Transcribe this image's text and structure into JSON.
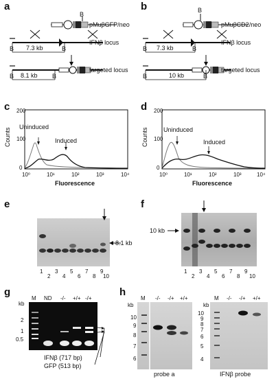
{
  "figure": {
    "panels": {
      "a": {
        "letter": "a",
        "plasmid": "pMuβGFP/neo",
        "locus": "IFNβ locus",
        "targeted": "targeted locus",
        "size_wt": "7.3 kb",
        "size_targeted": "8.1 kb",
        "site": "B"
      },
      "b": {
        "letter": "b",
        "plasmid": "pMuβCD2/neo",
        "locus": "IFNβ locus",
        "targeted": "targeted locus",
        "size_wt": "7.3 kb",
        "size_targeted": "10 kb",
        "site": "B"
      },
      "c": {
        "letter": "c",
        "ylabel": "Counts",
        "xlabel": "Fluorescence",
        "yticks": [
          "0",
          "100",
          "200"
        ],
        "xticks": [
          "10⁰",
          "10¹",
          "10²",
          "10³",
          "10⁴"
        ],
        "uninduced": "Uninduced",
        "induced": "Induced"
      },
      "d": {
        "letter": "d",
        "ylabel": "Counts",
        "xlabel": "Fluorescence",
        "yticks": [
          "0",
          "100",
          "200"
        ],
        "xticks": [
          "10⁰",
          "10¹",
          "10²",
          "10³",
          "10⁴"
        ],
        "uninduced": "Uninduced",
        "induced": "Induced"
      },
      "e": {
        "letter": "e",
        "band_label": "8.1 kb",
        "lanes": [
          "1",
          "2",
          "3",
          "4",
          "5",
          "6",
          "7",
          "8",
          "9",
          "10"
        ]
      },
      "f": {
        "letter": "f",
        "band_label": "10 kb",
        "lanes": [
          "1",
          "2",
          "3",
          "4",
          "5",
          "6",
          "7",
          "8",
          "9",
          "10"
        ]
      },
      "g": {
        "letter": "g",
        "kb_label": "kb",
        "ladder": [
          "2",
          "1",
          "0.5"
        ],
        "lane_labels": [
          "M",
          "ND",
          "-/-",
          "+/+",
          "-/+"
        ],
        "product1": "IFNβ (717 bp)",
        "product2": "GFP (513 bp)"
      },
      "h": {
        "letter": "h",
        "kb_label": "kb",
        "ladder": [
          "10",
          "9",
          "8",
          "7",
          "6"
        ],
        "ladder_right": [
          "10",
          "9",
          "8",
          "7",
          "6",
          "5",
          "4"
        ],
        "lane_labels_left": [
          "M",
          "-/-",
          "-/+",
          "+/+"
        ],
        "lane_labels_right": [
          "M",
          "-/-",
          "-/+",
          "+/+"
        ],
        "probe_left": "probe a",
        "probe_right": "IFNβ probe"
      }
    }
  }
}
